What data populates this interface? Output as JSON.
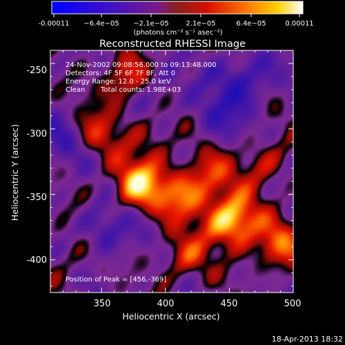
{
  "colorbar": {
    "ticks": [
      "-0.00011",
      "−6.4e−05",
      "−2.1e−05",
      "2.1e−05",
      "6.4e−05",
      "0.00011"
    ],
    "unit_label": "(photons cm⁻² s⁻¹ asec⁻²)",
    "range": [
      -0.00011,
      0.00011
    ]
  },
  "chart_data": {
    "type": "heatmap",
    "title": "Reconstructed RHESSI Image",
    "xlabel": "Heliocentric X (arcsec)",
    "ylabel": "Heliocentric Y (arcsec)",
    "xlim": [
      310,
      500
    ],
    "ylim": [
      -425,
      -240
    ],
    "xticks": [
      350,
      400,
      450,
      500
    ],
    "yticks": [
      -250,
      -300,
      -350,
      -400
    ],
    "colormap": "rhessi-blue-purple-red-yellow-white",
    "annotations": {
      "time_range": "24-Nov-2002 09:08:56.000 to 09:13:48.000",
      "detectors": "Detectors: 4F 5F 6F 7F 8F, Att 0",
      "energy": "Energy Range: 12.0 - 25.0 keV",
      "method": "Clean",
      "counts": "Total counts: 1.98E+03",
      "peak": "Position of Peak = [456,-369]"
    },
    "peak": {
      "x": 456,
      "y": -369
    },
    "sources": [
      {
        "x": 378,
        "y": -342,
        "value": 0.85
      },
      {
        "x": 452,
        "y": -370,
        "value": 1.0
      },
      {
        "x": 412,
        "y": -352,
        "value": 0.55
      },
      {
        "x": 433,
        "y": -336,
        "value": 0.5
      },
      {
        "x": 488,
        "y": -390,
        "value": 0.6
      },
      {
        "x": 345,
        "y": -304,
        "value": 0.45
      },
      {
        "x": 368,
        "y": -262,
        "value": 0.55
      },
      {
        "x": 415,
        "y": -398,
        "value": 0.45
      },
      {
        "x": 478,
        "y": -326,
        "value": 0.4
      },
      {
        "x": 392,
        "y": -305,
        "value": 0.3
      },
      {
        "x": 328,
        "y": -395,
        "value": 0.25
      },
      {
        "x": 352,
        "y": -378,
        "value": -0.4
      },
      {
        "x": 462,
        "y": -262,
        "value": -0.45
      },
      {
        "x": 322,
        "y": -310,
        "value": -0.3
      },
      {
        "x": 440,
        "y": -290,
        "value": -0.3
      },
      {
        "x": 395,
        "y": -270,
        "value": -0.25
      }
    ]
  },
  "footer": {
    "date": "18-Apr-2013 18:32"
  }
}
